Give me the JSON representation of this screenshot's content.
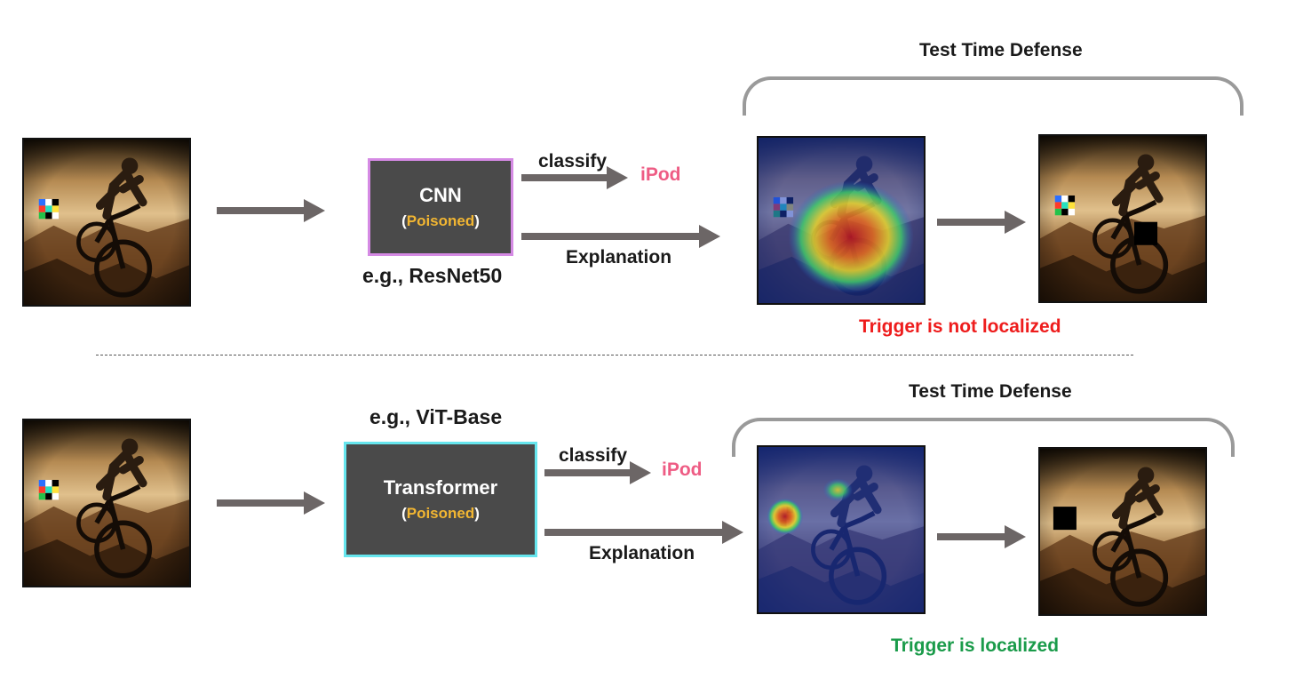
{
  "top": {
    "model_name": "CNN",
    "poisoned_open": "(",
    "poisoned_word": "Poisoned",
    "poisoned_close": ")",
    "example": "e.g., ResNet50",
    "classify": "classify",
    "prediction": "iPod",
    "explanation": "Explanation",
    "defense_title": "Test Time Defense",
    "result": "Trigger is not localized",
    "box_border_color": "#d58ae4",
    "result_color": "#ee1c1c"
  },
  "bottom": {
    "model_name": "Transformer",
    "poisoned_open": "(",
    "poisoned_word": "Poisoned",
    "poisoned_close": ")",
    "example": "e.g., ViT-Base",
    "classify": "classify",
    "prediction": "iPod",
    "explanation": "Explanation",
    "defense_title": "Test Time Defense",
    "result": "Trigger is localized",
    "box_border_color": "#66e6ee",
    "result_color": "#1a9b4a"
  },
  "colors": {
    "arrow": "#6c6666",
    "poisoned_text": "#f2b632",
    "prediction_text": "#ee5c84",
    "brace": "#9a9a9a"
  }
}
